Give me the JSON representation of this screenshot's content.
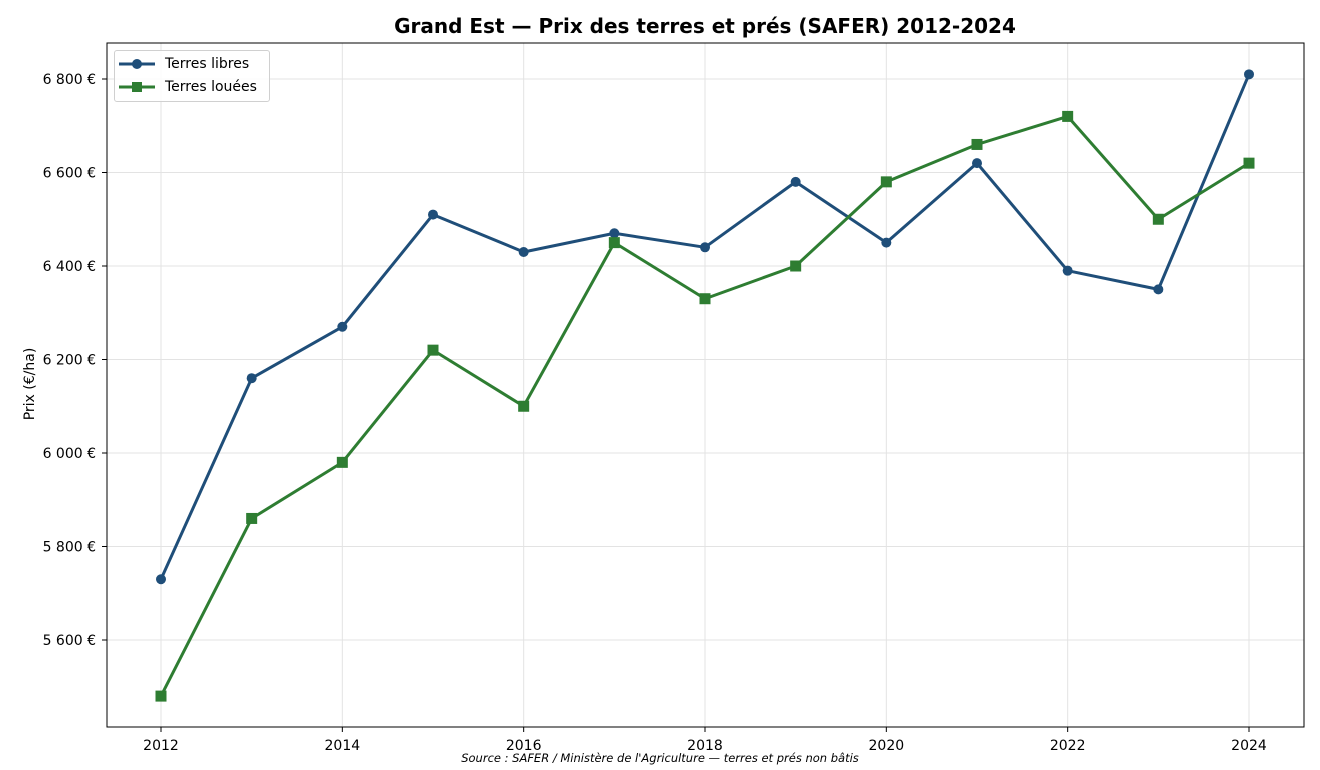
{
  "chart_data": {
    "type": "line",
    "title": "Grand Est — Prix des terres et prés (SAFER) 2012-2024",
    "xlabel": "",
    "ylabel": "Prix (€/ha)",
    "x": [
      2012,
      2013,
      2014,
      2015,
      2016,
      2017,
      2018,
      2019,
      2020,
      2021,
      2022,
      2023,
      2024
    ],
    "series": [
      {
        "name": "Terres libres",
        "color": "#1f4e79",
        "marker": "circle",
        "values": [
          5730,
          6160,
          6270,
          6510,
          6430,
          6470,
          6440,
          6580,
          6450,
          6620,
          6390,
          6350,
          6810
        ]
      },
      {
        "name": "Terres louées",
        "color": "#2e7d32",
        "marker": "square",
        "values": [
          5480,
          5860,
          5980,
          6220,
          6100,
          6450,
          6330,
          6400,
          6580,
          6660,
          6720,
          6500,
          6620
        ]
      }
    ],
    "x_ticks": [
      "2012",
      "2014",
      "2016",
      "2018",
      "2020",
      "2022",
      "2024"
    ],
    "y_ticks": [
      "5 600 €",
      "5 800 €",
      "6 000 €",
      "6 200 €",
      "6 400 €",
      "6 600 €",
      "6 800 €"
    ],
    "ylim": [
      5400,
      6880
    ],
    "grid": true,
    "legend_position": "upper left"
  },
  "source_note": "Source : SAFER / Ministère de l'Agriculture — terres et prés non bâtis"
}
